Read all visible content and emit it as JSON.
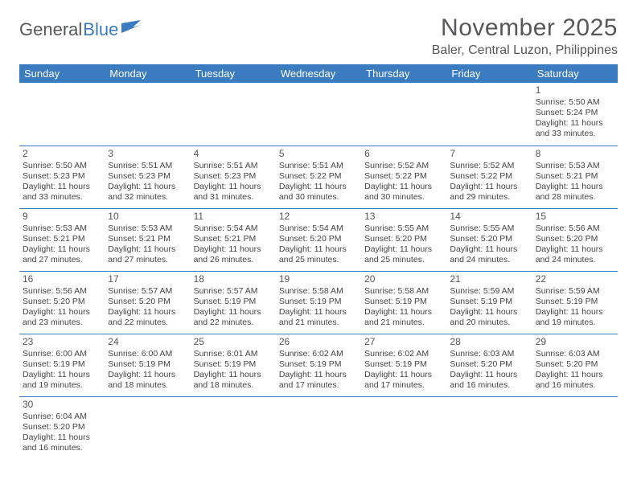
{
  "brand": {
    "part1": "General",
    "part2": "Blue"
  },
  "title": "November 2025",
  "location": "Baler, Central Luzon, Philippines",
  "colors": {
    "header_bg": "#3b7bbf",
    "header_text": "#ffffff",
    "cell_border": "#3b7bbf",
    "body_text": "#444444",
    "title_text": "#55575a",
    "background": "#ffffff"
  },
  "layout": {
    "columns": 7,
    "rows": 6,
    "first_day_column_index": 6,
    "days_in_month": 30
  },
  "weekdays": [
    "Sunday",
    "Monday",
    "Tuesday",
    "Wednesday",
    "Thursday",
    "Friday",
    "Saturday"
  ],
  "days": [
    {
      "n": 1,
      "sunrise": "5:50 AM",
      "sunset": "5:24 PM",
      "dlh": 11,
      "dlm": 33
    },
    {
      "n": 2,
      "sunrise": "5:50 AM",
      "sunset": "5:23 PM",
      "dlh": 11,
      "dlm": 33
    },
    {
      "n": 3,
      "sunrise": "5:51 AM",
      "sunset": "5:23 PM",
      "dlh": 11,
      "dlm": 32
    },
    {
      "n": 4,
      "sunrise": "5:51 AM",
      "sunset": "5:23 PM",
      "dlh": 11,
      "dlm": 31
    },
    {
      "n": 5,
      "sunrise": "5:51 AM",
      "sunset": "5:22 PM",
      "dlh": 11,
      "dlm": 30
    },
    {
      "n": 6,
      "sunrise": "5:52 AM",
      "sunset": "5:22 PM",
      "dlh": 11,
      "dlm": 30
    },
    {
      "n": 7,
      "sunrise": "5:52 AM",
      "sunset": "5:22 PM",
      "dlh": 11,
      "dlm": 29
    },
    {
      "n": 8,
      "sunrise": "5:53 AM",
      "sunset": "5:21 PM",
      "dlh": 11,
      "dlm": 28
    },
    {
      "n": 9,
      "sunrise": "5:53 AM",
      "sunset": "5:21 PM",
      "dlh": 11,
      "dlm": 27
    },
    {
      "n": 10,
      "sunrise": "5:53 AM",
      "sunset": "5:21 PM",
      "dlh": 11,
      "dlm": 27
    },
    {
      "n": 11,
      "sunrise": "5:54 AM",
      "sunset": "5:21 PM",
      "dlh": 11,
      "dlm": 26
    },
    {
      "n": 12,
      "sunrise": "5:54 AM",
      "sunset": "5:20 PM",
      "dlh": 11,
      "dlm": 25
    },
    {
      "n": 13,
      "sunrise": "5:55 AM",
      "sunset": "5:20 PM",
      "dlh": 11,
      "dlm": 25
    },
    {
      "n": 14,
      "sunrise": "5:55 AM",
      "sunset": "5:20 PM",
      "dlh": 11,
      "dlm": 24
    },
    {
      "n": 15,
      "sunrise": "5:56 AM",
      "sunset": "5:20 PM",
      "dlh": 11,
      "dlm": 24
    },
    {
      "n": 16,
      "sunrise": "5:56 AM",
      "sunset": "5:20 PM",
      "dlh": 11,
      "dlm": 23
    },
    {
      "n": 17,
      "sunrise": "5:57 AM",
      "sunset": "5:20 PM",
      "dlh": 11,
      "dlm": 22
    },
    {
      "n": 18,
      "sunrise": "5:57 AM",
      "sunset": "5:19 PM",
      "dlh": 11,
      "dlm": 22
    },
    {
      "n": 19,
      "sunrise": "5:58 AM",
      "sunset": "5:19 PM",
      "dlh": 11,
      "dlm": 21
    },
    {
      "n": 20,
      "sunrise": "5:58 AM",
      "sunset": "5:19 PM",
      "dlh": 11,
      "dlm": 21
    },
    {
      "n": 21,
      "sunrise": "5:59 AM",
      "sunset": "5:19 PM",
      "dlh": 11,
      "dlm": 20
    },
    {
      "n": 22,
      "sunrise": "5:59 AM",
      "sunset": "5:19 PM",
      "dlh": 11,
      "dlm": 19
    },
    {
      "n": 23,
      "sunrise": "6:00 AM",
      "sunset": "5:19 PM",
      "dlh": 11,
      "dlm": 19
    },
    {
      "n": 24,
      "sunrise": "6:00 AM",
      "sunset": "5:19 PM",
      "dlh": 11,
      "dlm": 18
    },
    {
      "n": 25,
      "sunrise": "6:01 AM",
      "sunset": "5:19 PM",
      "dlh": 11,
      "dlm": 18
    },
    {
      "n": 26,
      "sunrise": "6:02 AM",
      "sunset": "5:19 PM",
      "dlh": 11,
      "dlm": 17
    },
    {
      "n": 27,
      "sunrise": "6:02 AM",
      "sunset": "5:19 PM",
      "dlh": 11,
      "dlm": 17
    },
    {
      "n": 28,
      "sunrise": "6:03 AM",
      "sunset": "5:20 PM",
      "dlh": 11,
      "dlm": 16
    },
    {
      "n": 29,
      "sunrise": "6:03 AM",
      "sunset": "5:20 PM",
      "dlh": 11,
      "dlm": 16
    },
    {
      "n": 30,
      "sunrise": "6:04 AM",
      "sunset": "5:20 PM",
      "dlh": 11,
      "dlm": 16
    }
  ],
  "labels": {
    "sunrise_prefix": "Sunrise: ",
    "sunset_prefix": "Sunset: ",
    "daylight_prefix": "Daylight: ",
    "hours_word": " hours",
    "and_word": "and ",
    "minutes_word": " minutes."
  }
}
